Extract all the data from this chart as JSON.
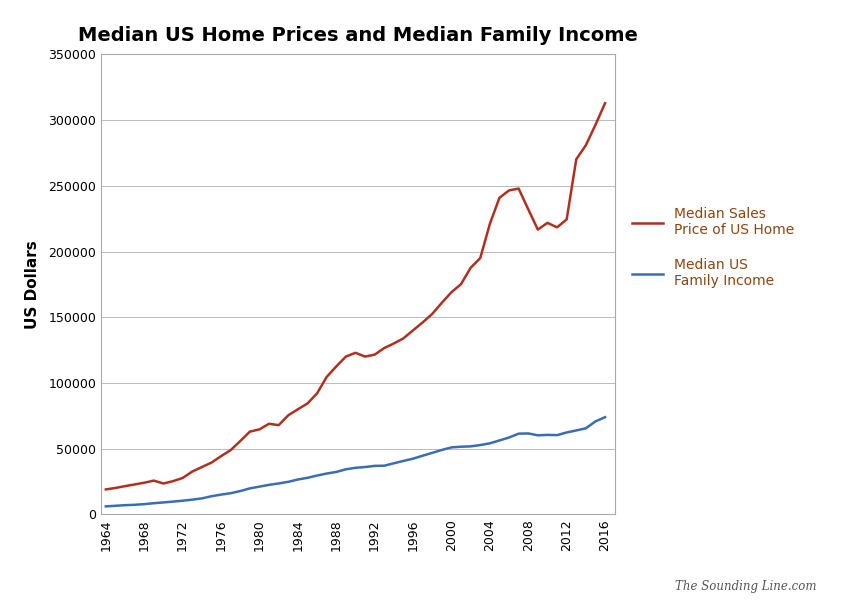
{
  "title": "Median US Home Prices and Median Family Income",
  "ylabel": "US Dollars",
  "background_color": "#ffffff",
  "border_color": "#000000",
  "watermark": "The Sounding Line.com",
  "home_price_color": "#b03020",
  "income_color": "#3a6db5",
  "legend_text_color": "#8B4513",
  "home_price_label": "Median Sales\nPrice of US Home",
  "income_label": "Median US\nFamily Income",
  "years": [
    1964,
    1965,
    1966,
    1967,
    1968,
    1969,
    1970,
    1971,
    1972,
    1973,
    1974,
    1975,
    1976,
    1977,
    1978,
    1979,
    1980,
    1981,
    1982,
    1983,
    1984,
    1985,
    1986,
    1987,
    1988,
    1989,
    1990,
    1991,
    1992,
    1993,
    1994,
    1995,
    1996,
    1997,
    1998,
    1999,
    2000,
    2001,
    2002,
    2003,
    2004,
    2005,
    2006,
    2007,
    2008,
    2009,
    2010,
    2011,
    2012,
    2013,
    2014,
    2015,
    2016
  ],
  "home_prices": [
    18900,
    20000,
    21400,
    22700,
    24000,
    25600,
    23400,
    25200,
    27600,
    32500,
    35900,
    39300,
    44200,
    48800,
    55700,
    62900,
    64600,
    68900,
    67800,
    75300,
    79900,
    84300,
    92000,
    104500,
    112500,
    120000,
    122900,
    120000,
    121500,
    126500,
    130000,
    133900,
    140000,
    146000,
    152500,
    161000,
    169000,
    175200,
    187600,
    195000,
    221000,
    240900,
    246500,
    247900,
    232100,
    216700,
    221800,
    218400,
    224400,
    270200,
    280900,
    296400,
    312900
  ],
  "family_income": [
    6000,
    6450,
    6900,
    7200,
    7700,
    8400,
    9000,
    9630,
    10300,
    11100,
    12050,
    13720,
    14958,
    16009,
    17640,
    19684,
    21023,
    22388,
    23433,
    24674,
    26433,
    27735,
    29458,
    30970,
    32191,
    34213,
    35353,
    35939,
    36812,
    36959,
    38782,
    40611,
    42300,
    44568,
    46737,
    48950,
    50890,
    51407,
    51680,
    52680,
    53974,
    56194,
    58407,
    61355,
    61521,
    60088,
    60395,
    60236,
    62241,
    63815,
    65397,
    70696,
    73891
  ],
  "ylim": [
    0,
    350000
  ],
  "yticks": [
    0,
    50000,
    100000,
    150000,
    200000,
    250000,
    300000,
    350000
  ],
  "ytick_labels": [
    "0",
    "50000",
    "100000",
    "150000",
    "200000",
    "250000",
    "300000",
    "350000"
  ],
  "xtick_years": [
    1964,
    1968,
    1972,
    1976,
    1980,
    1984,
    1988,
    1992,
    1996,
    2000,
    2004,
    2008,
    2012,
    2016
  ],
  "xlim": [
    1963.5,
    2017
  ]
}
